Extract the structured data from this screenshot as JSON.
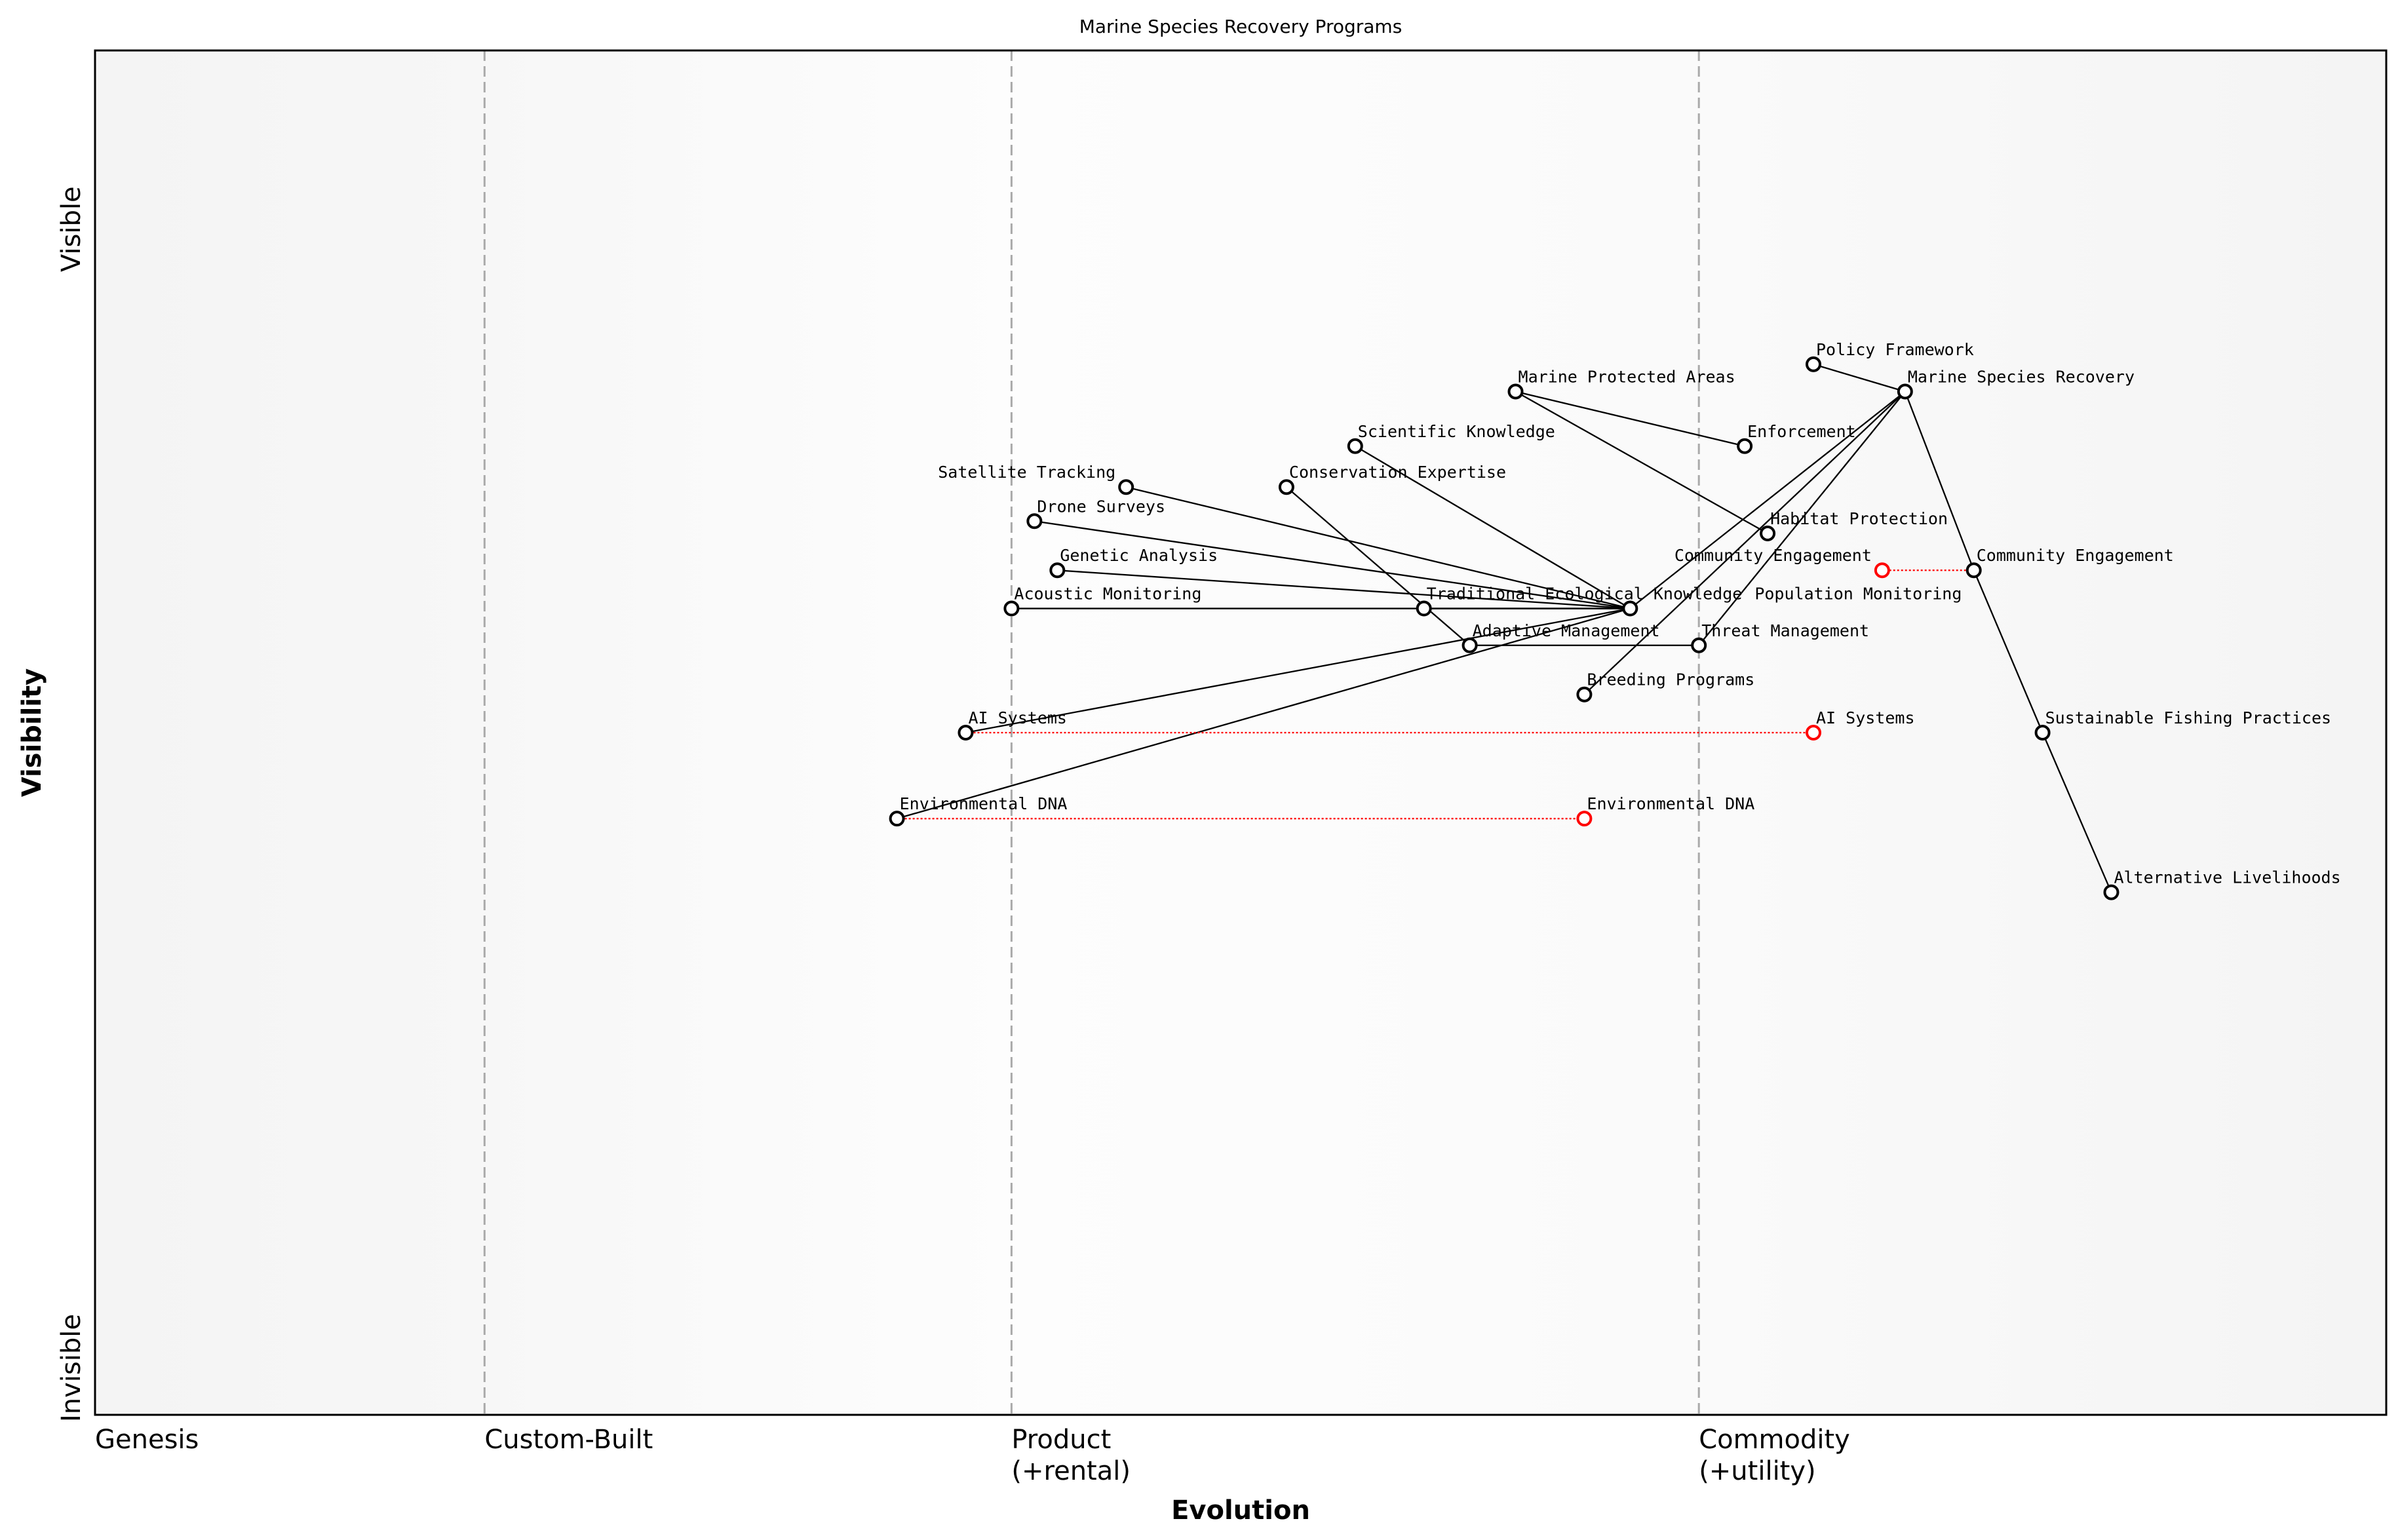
{
  "title": "Marine Species Recovery Programs",
  "x_axis": {
    "label": "Evolution",
    "stages": [
      {
        "label": "Genesis",
        "sub": "",
        "position": 0.0
      },
      {
        "label": "Custom-Built",
        "sub": "",
        "position": 0.17
      },
      {
        "label": "Product",
        "sub": "(+rental)",
        "position": 0.4
      },
      {
        "label": "Commodity",
        "sub": "(+utility)",
        "position": 0.7
      }
    ]
  },
  "y_axis": {
    "label": "Visibility",
    "top": "Visible",
    "bottom": "Invisible"
  },
  "colors": {
    "node": "#000000",
    "evolved": "#ff0000",
    "divider": "#aaaaaa",
    "edge": "#000000"
  },
  "components": [
    {
      "id": "msr",
      "name": "Marine Species Recovery",
      "evolution": 0.79,
      "visibility": 0.75
    },
    {
      "id": "policy",
      "name": "Policy Framework",
      "evolution": 0.75,
      "visibility": 0.77
    },
    {
      "id": "mpa",
      "name": "Marine Protected Areas",
      "evolution": 0.62,
      "visibility": 0.75
    },
    {
      "id": "enf",
      "name": "Enforcement",
      "evolution": 0.72,
      "visibility": 0.71
    },
    {
      "id": "sci",
      "name": "Scientific Knowledge",
      "evolution": 0.55,
      "visibility": 0.71
    },
    {
      "id": "sat",
      "name": "Satellite Tracking",
      "evolution": 0.45,
      "visibility": 0.68
    },
    {
      "id": "cons",
      "name": "Conservation Expertise",
      "evolution": 0.52,
      "visibility": 0.68
    },
    {
      "id": "drone",
      "name": "Drone Surveys",
      "evolution": 0.41,
      "visibility": 0.655
    },
    {
      "id": "hab",
      "name": "Habitat Protection",
      "evolution": 0.73,
      "visibility": 0.646
    },
    {
      "id": "gen",
      "name": "Genetic Analysis",
      "evolution": 0.42,
      "visibility": 0.619
    },
    {
      "id": "comm",
      "name": "Community Engagement",
      "evolution": 0.82,
      "visibility": 0.619
    },
    {
      "id": "ac",
      "name": "Acoustic Monitoring",
      "evolution": 0.4,
      "visibility": 0.591
    },
    {
      "id": "tek",
      "name": "Traditional Ecological Knowledge",
      "evolution": 0.58,
      "visibility": 0.591
    },
    {
      "id": "pop",
      "name": "Population Monitoring",
      "evolution": 0.67,
      "visibility": 0.591
    },
    {
      "id": "adapt",
      "name": "Adaptive Management",
      "evolution": 0.6,
      "visibility": 0.564
    },
    {
      "id": "threat",
      "name": "Threat Management",
      "evolution": 0.7,
      "visibility": 0.564
    },
    {
      "id": "breed",
      "name": "Breeding Programs",
      "evolution": 0.65,
      "visibility": 0.528
    },
    {
      "id": "ai",
      "name": "AI Systems",
      "evolution": 0.38,
      "visibility": 0.5
    },
    {
      "id": "sfp",
      "name": "Sustainable Fishing Practices",
      "evolution": 0.85,
      "visibility": 0.5
    },
    {
      "id": "edna",
      "name": "Environmental DNA",
      "evolution": 0.35,
      "visibility": 0.437
    },
    {
      "id": "alt",
      "name": "Alternative Livelihoods",
      "evolution": 0.88,
      "visibility": 0.383
    }
  ],
  "evolved": [
    {
      "from": "ai",
      "name": "AI Systems",
      "evolution": 0.75,
      "visibility": 0.5
    },
    {
      "from": "edna",
      "name": "Environmental DNA",
      "evolution": 0.65,
      "visibility": 0.437
    },
    {
      "from": "comm",
      "name": "Community Engagement",
      "evolution": 0.78,
      "visibility": 0.619
    }
  ],
  "links": [
    [
      "msr",
      "policy"
    ],
    [
      "msr",
      "comm"
    ],
    [
      "comm",
      "sfp"
    ],
    [
      "sfp",
      "alt"
    ],
    [
      "msr",
      "pop"
    ],
    [
      "msr",
      "breed"
    ],
    [
      "msr",
      "threat"
    ],
    [
      "mpa",
      "enf"
    ],
    [
      "mpa",
      "hab"
    ],
    [
      "pop",
      "sci"
    ],
    [
      "pop",
      "sat"
    ],
    [
      "pop",
      "drone"
    ],
    [
      "pop",
      "gen"
    ],
    [
      "pop",
      "ac"
    ],
    [
      "pop",
      "tek"
    ],
    [
      "pop",
      "ai"
    ],
    [
      "pop",
      "edna"
    ],
    [
      "cons",
      "adapt"
    ],
    [
      "adapt",
      "threat"
    ]
  ]
}
